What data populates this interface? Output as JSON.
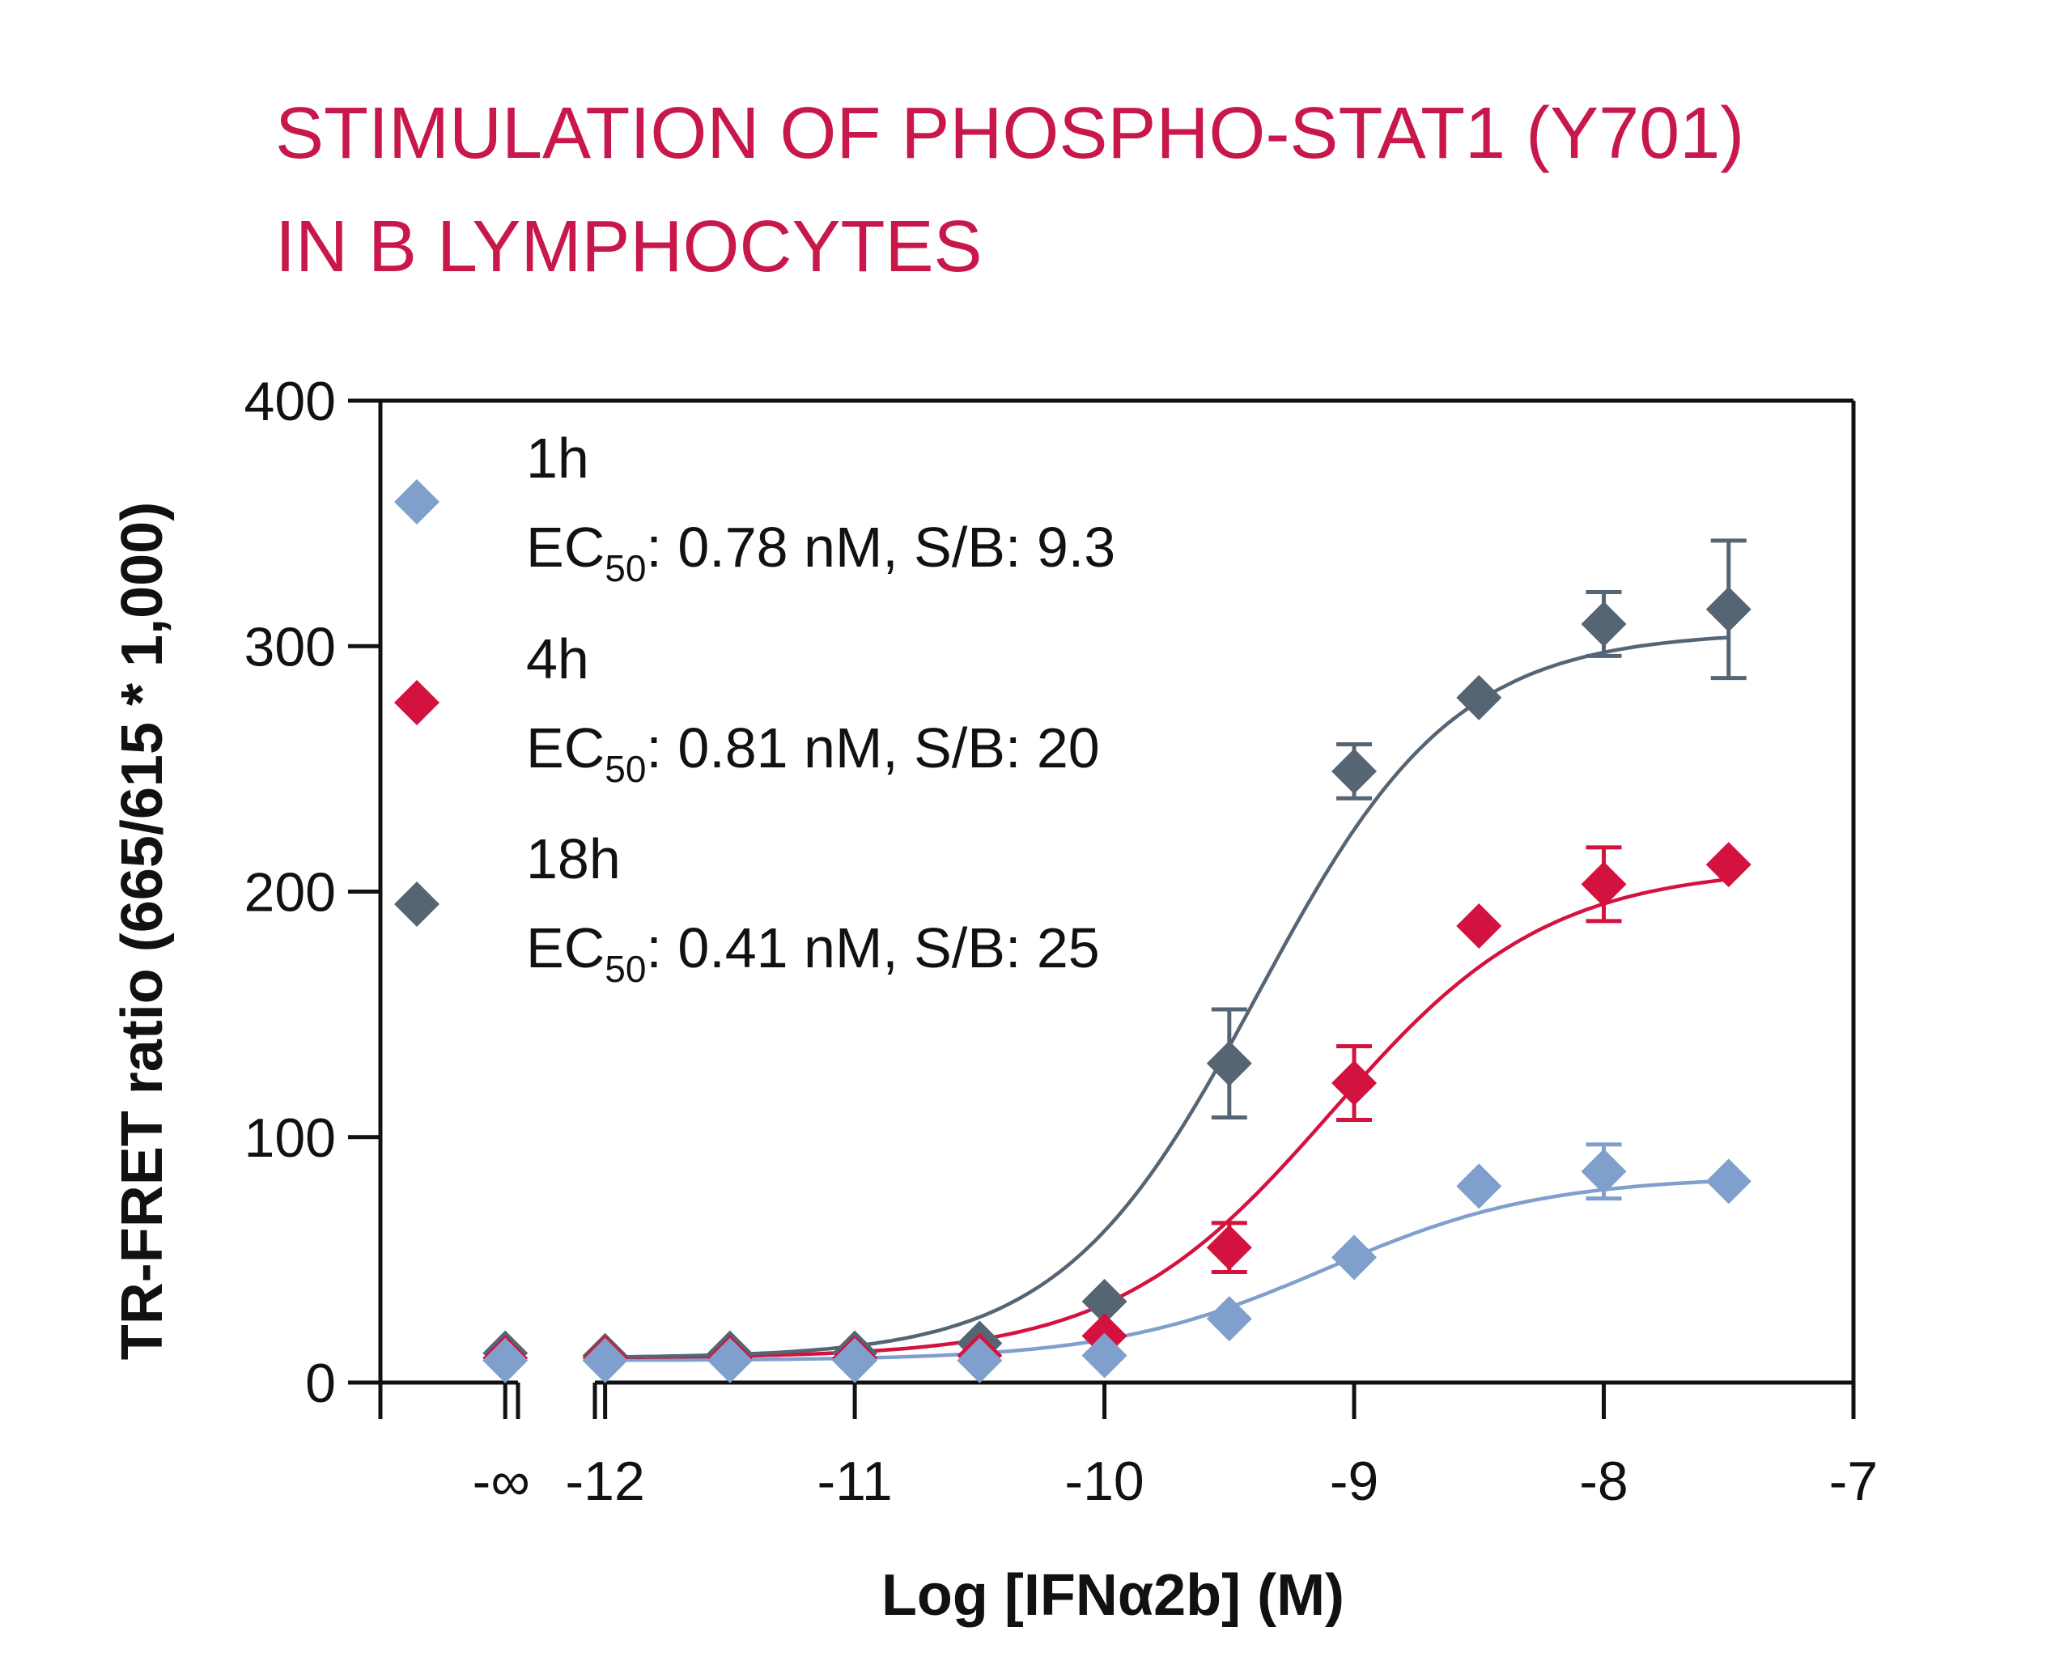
{
  "chart_data": {
    "type": "scatter",
    "title_lines": [
      "STIMULATION OF PHOSPHO-STAT1 (Y701)",
      "IN B LYMPHOCYTES"
    ],
    "xlabel": "Log [IFNα2b] (M)",
    "ylabel": "TR-FRET ratio (665/615 * 1,000)",
    "xlim": [
      -12.9,
      -7
    ],
    "ylim": [
      0,
      400
    ],
    "xticks": [
      {
        "value": -12,
        "label": "-12"
      },
      {
        "value": -11,
        "label": "-11"
      },
      {
        "value": -10,
        "label": "-10"
      },
      {
        "value": -9,
        "label": "-9"
      },
      {
        "value": -8,
        "label": "-8"
      },
      {
        "value": -7,
        "label": "-7"
      }
    ],
    "x_break_label": "-∞",
    "yticks": [
      {
        "value": 0,
        "label": "0"
      },
      {
        "value": 100,
        "label": "100"
      },
      {
        "value": 200,
        "label": "200"
      },
      {
        "value": 300,
        "label": "300"
      },
      {
        "value": 400,
        "label": "400"
      }
    ],
    "legend_placement": "top-left",
    "series": [
      {
        "name": "1h",
        "ec50_prefix": "EC",
        "ec50_sub": "50",
        "ec50_text": ": 0.78 nM, S/B: 9.3",
        "color": "#7f9fcc",
        "fit": {
          "bottom": 9,
          "top": 84,
          "logec50": -9.108,
          "hill": 1.0
        },
        "points": [
          {
            "x": "-∞",
            "y": 9,
            "err": 0
          },
          {
            "x": -12,
            "y": 9,
            "err": 0
          },
          {
            "x": -11.5,
            "y": 9,
            "err": 0
          },
          {
            "x": -11,
            "y": 9,
            "err": 0
          },
          {
            "x": -10.5,
            "y": 9,
            "err": 0
          },
          {
            "x": -10,
            "y": 11,
            "err": 0
          },
          {
            "x": -9.5,
            "y": 26,
            "err": 0
          },
          {
            "x": -9,
            "y": 51,
            "err": 0
          },
          {
            "x": -8.5,
            "y": 80,
            "err": 0
          },
          {
            "x": -8,
            "y": 86,
            "err": 11
          },
          {
            "x": -7.5,
            "y": 82,
            "err": 0
          }
        ]
      },
      {
        "name": "4h",
        "ec50_prefix": "EC",
        "ec50_sub": "50",
        "ec50_text": ": 0.81 nM, S/B: 20",
        "color": "#d4123f",
        "fit": {
          "bottom": 10,
          "top": 210,
          "logec50": -9.092,
          "hill": 1.0
        },
        "points": [
          {
            "x": "-∞",
            "y": 10,
            "err": 0
          },
          {
            "x": -12,
            "y": 10,
            "err": 0
          },
          {
            "x": -11.5,
            "y": 10,
            "err": 0
          },
          {
            "x": -11,
            "y": 10,
            "err": 0
          },
          {
            "x": -10.5,
            "y": 11,
            "err": 0
          },
          {
            "x": -10,
            "y": 19,
            "err": 0
          },
          {
            "x": -9.5,
            "y": 55,
            "err": 10
          },
          {
            "x": -9,
            "y": 122,
            "err": 15
          },
          {
            "x": -8.5,
            "y": 186,
            "err": 0
          },
          {
            "x": -8,
            "y": 203,
            "err": 15
          },
          {
            "x": -7.5,
            "y": 211,
            "err": 0
          }
        ]
      },
      {
        "name": "18h",
        "ec50_prefix": "EC",
        "ec50_sub": "50",
        "ec50_text": ": 0.41 nM, S/B: 25",
        "color": "#566573",
        "fit": {
          "bottom": 10,
          "top": 306,
          "logec50": -9.387,
          "hill": 1.1
        },
        "points": [
          {
            "x": "-∞",
            "y": 12,
            "err": 0
          },
          {
            "x": -12,
            "y": 11,
            "err": 0
          },
          {
            "x": -11.5,
            "y": 12,
            "err": 0
          },
          {
            "x": -11,
            "y": 12,
            "err": 0
          },
          {
            "x": -10.5,
            "y": 16,
            "err": 0
          },
          {
            "x": -10,
            "y": 33,
            "err": 0
          },
          {
            "x": -9.5,
            "y": 130,
            "err": 22
          },
          {
            "x": -9,
            "y": 249,
            "err": 11
          },
          {
            "x": -8.5,
            "y": 279,
            "err": 0
          },
          {
            "x": -8,
            "y": 309,
            "err": 13
          },
          {
            "x": -7.5,
            "y": 315,
            "err": 28
          }
        ]
      }
    ]
  }
}
